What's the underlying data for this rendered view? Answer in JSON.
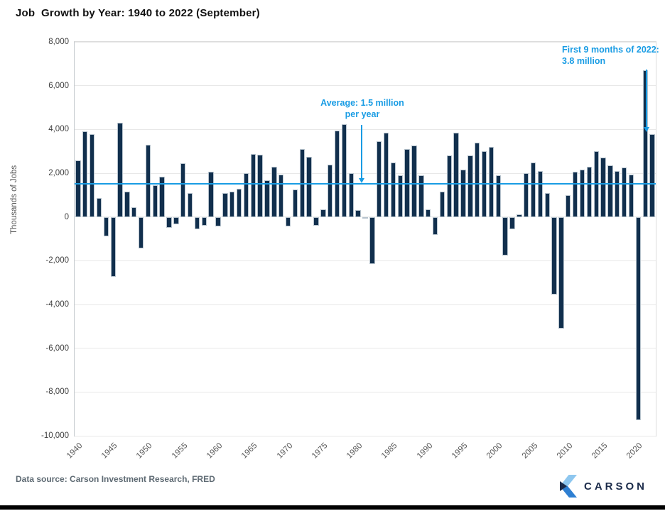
{
  "title": "Job  Growth by Year: 1940 to 2022 (September)",
  "colors": {
    "bar": "#112f4d",
    "bar_border": "#b7c3cd",
    "accent_blue": "#199ce4",
    "gridline": "#e8e8e8",
    "axis_text": "#3f3f3f",
    "footer_text": "#5e6a73",
    "logo_navy": "#1b2b4a",
    "logo_light_blue": "#8ec7ef",
    "logo_mid_blue": "#2e7fd2"
  },
  "chart_data": {
    "type": "bar",
    "title": "Job  Growth by Year: 1940 to 2022 (September)",
    "xlabel": "",
    "ylabel": "Thousands of Jobs",
    "ylim": [
      -10000,
      8000
    ],
    "y_ticks": [
      8000,
      6000,
      4000,
      2000,
      0,
      -2000,
      -4000,
      -6000,
      -8000,
      -10000
    ],
    "y_tick_labels": [
      "8,000",
      "6,000",
      "4,000",
      "2,000",
      "0",
      "-2,000",
      "-4,000",
      "-6,000",
      "-8,000",
      "-10,000"
    ],
    "x_ticks": [
      1940,
      1945,
      1950,
      1955,
      1960,
      1965,
      1970,
      1975,
      1980,
      1985,
      1990,
      1995,
      2000,
      2005,
      2010,
      2015,
      2020
    ],
    "grid": "horizontal",
    "legend": "none",
    "average_line_value": 1500,
    "x": [
      1940,
      1941,
      1942,
      1943,
      1944,
      1945,
      1946,
      1947,
      1948,
      1949,
      1950,
      1951,
      1952,
      1953,
      1954,
      1955,
      1956,
      1957,
      1958,
      1959,
      1960,
      1961,
      1962,
      1963,
      1964,
      1965,
      1966,
      1967,
      1968,
      1969,
      1970,
      1971,
      1972,
      1973,
      1974,
      1975,
      1976,
      1977,
      1978,
      1979,
      1980,
      1981,
      1982,
      1983,
      1984,
      1985,
      1986,
      1987,
      1988,
      1989,
      1990,
      1991,
      1992,
      1993,
      1994,
      1995,
      1996,
      1997,
      1998,
      1999,
      2000,
      2001,
      2002,
      2003,
      2004,
      2005,
      2006,
      2007,
      2008,
      2009,
      2010,
      2011,
      2012,
      2013,
      2014,
      2015,
      2016,
      2017,
      2018,
      2019,
      2020,
      2021,
      2022
    ],
    "values": [
      2600,
      3900,
      3800,
      850,
      -900,
      -2750,
      4300,
      1150,
      450,
      -1450,
      3300,
      1450,
      1850,
      -500,
      -350,
      2450,
      1100,
      -550,
      -400,
      2050,
      -430,
      1100,
      1150,
      1300,
      2000,
      2880,
      2830,
      1680,
      2290,
      1950,
      -430,
      1270,
      3100,
      2750,
      -390,
      350,
      2400,
      3950,
      4250,
      2000,
      300,
      -90,
      -2150,
      3450,
      3850,
      2500,
      1900,
      3100,
      3250,
      1900,
      350,
      -830,
      1150,
      2800,
      3850,
      2150,
      2800,
      3400,
      3000,
      3200,
      1900,
      -1750,
      -550,
      130,
      2000,
      2500,
      2100,
      1100,
      -3550,
      -5100,
      1000,
      2050,
      2150,
      2300,
      3000,
      2700,
      2350,
      2100,
      2250,
      1950,
      -9300,
      6700,
      3800
    ],
    "annotations": [
      {
        "text": "Average: 1.5 million per year",
        "points_to": "average line at 1500"
      },
      {
        "text": "First 9 months of 2022: 3.8 million",
        "points_to": "2022 bar"
      }
    ]
  },
  "annotations": {
    "average": {
      "line1": "Average: 1.5 million",
      "line2": "per year"
    },
    "first9": {
      "line1": "First 9 months of 2022:",
      "line2": "3.8 million"
    }
  },
  "axis": {
    "y_title": "Thousands of Jobs"
  },
  "footer": {
    "source": "Data source: Carson Investment Research, FRED",
    "logo_text": "CARSON"
  }
}
